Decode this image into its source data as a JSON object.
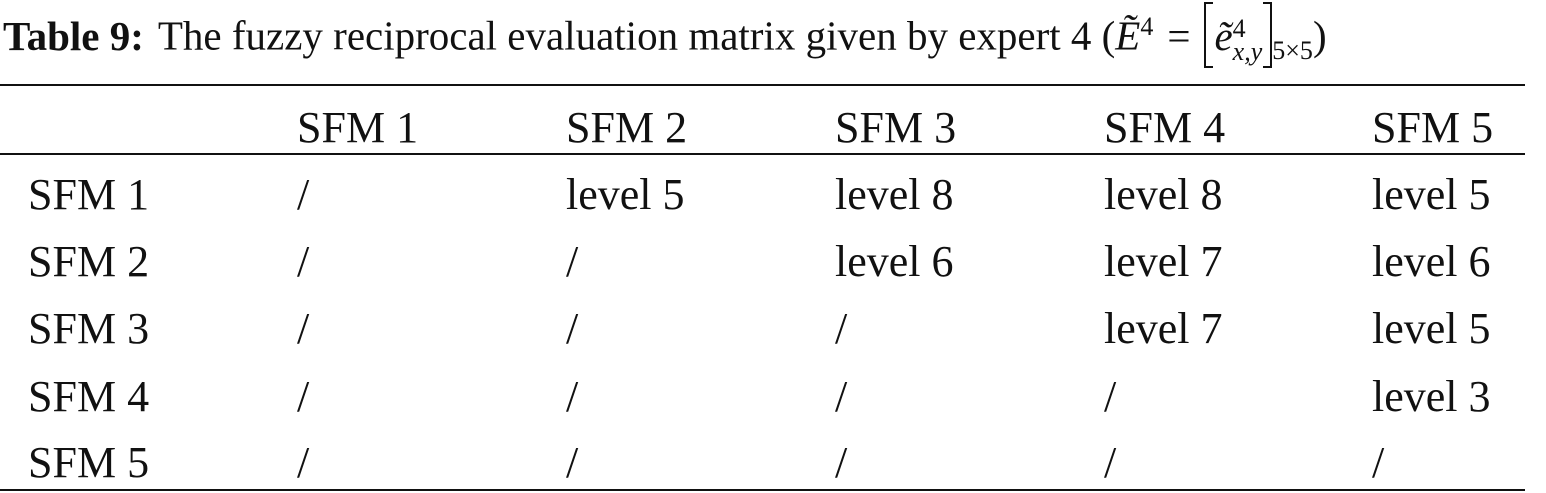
{
  "caption": {
    "label": "Table 9:",
    "text": "The fuzzy reciprocal evaluation matrix given by expert 4 (",
    "math": {
      "symbol": "Ẽ",
      "symbol_sup": "4",
      "equals": "=",
      "element": "ẽ",
      "element_sup": "4",
      "element_sub": "x,y",
      "size": "5×5",
      "close": ")"
    }
  },
  "table": {
    "columns": [
      "SFM 1",
      "SFM 2",
      "SFM 3",
      "SFM 4",
      "SFM 5"
    ],
    "rows": [
      {
        "label": "SFM 1",
        "cells": [
          "/",
          "level 5",
          "level 8",
          "level 8",
          "level 5"
        ]
      },
      {
        "label": "SFM 2",
        "cells": [
          "/",
          "/",
          "level 6",
          "level 7",
          "level 6"
        ]
      },
      {
        "label": "SFM 3",
        "cells": [
          "/",
          "/",
          "/",
          "level 7",
          "level 5"
        ]
      },
      {
        "label": "SFM 4",
        "cells": [
          "/",
          "/",
          "/",
          "/",
          "level 3"
        ]
      },
      {
        "label": "SFM 5",
        "cells": [
          "/",
          "/",
          "/",
          "/",
          "/"
        ]
      }
    ]
  }
}
